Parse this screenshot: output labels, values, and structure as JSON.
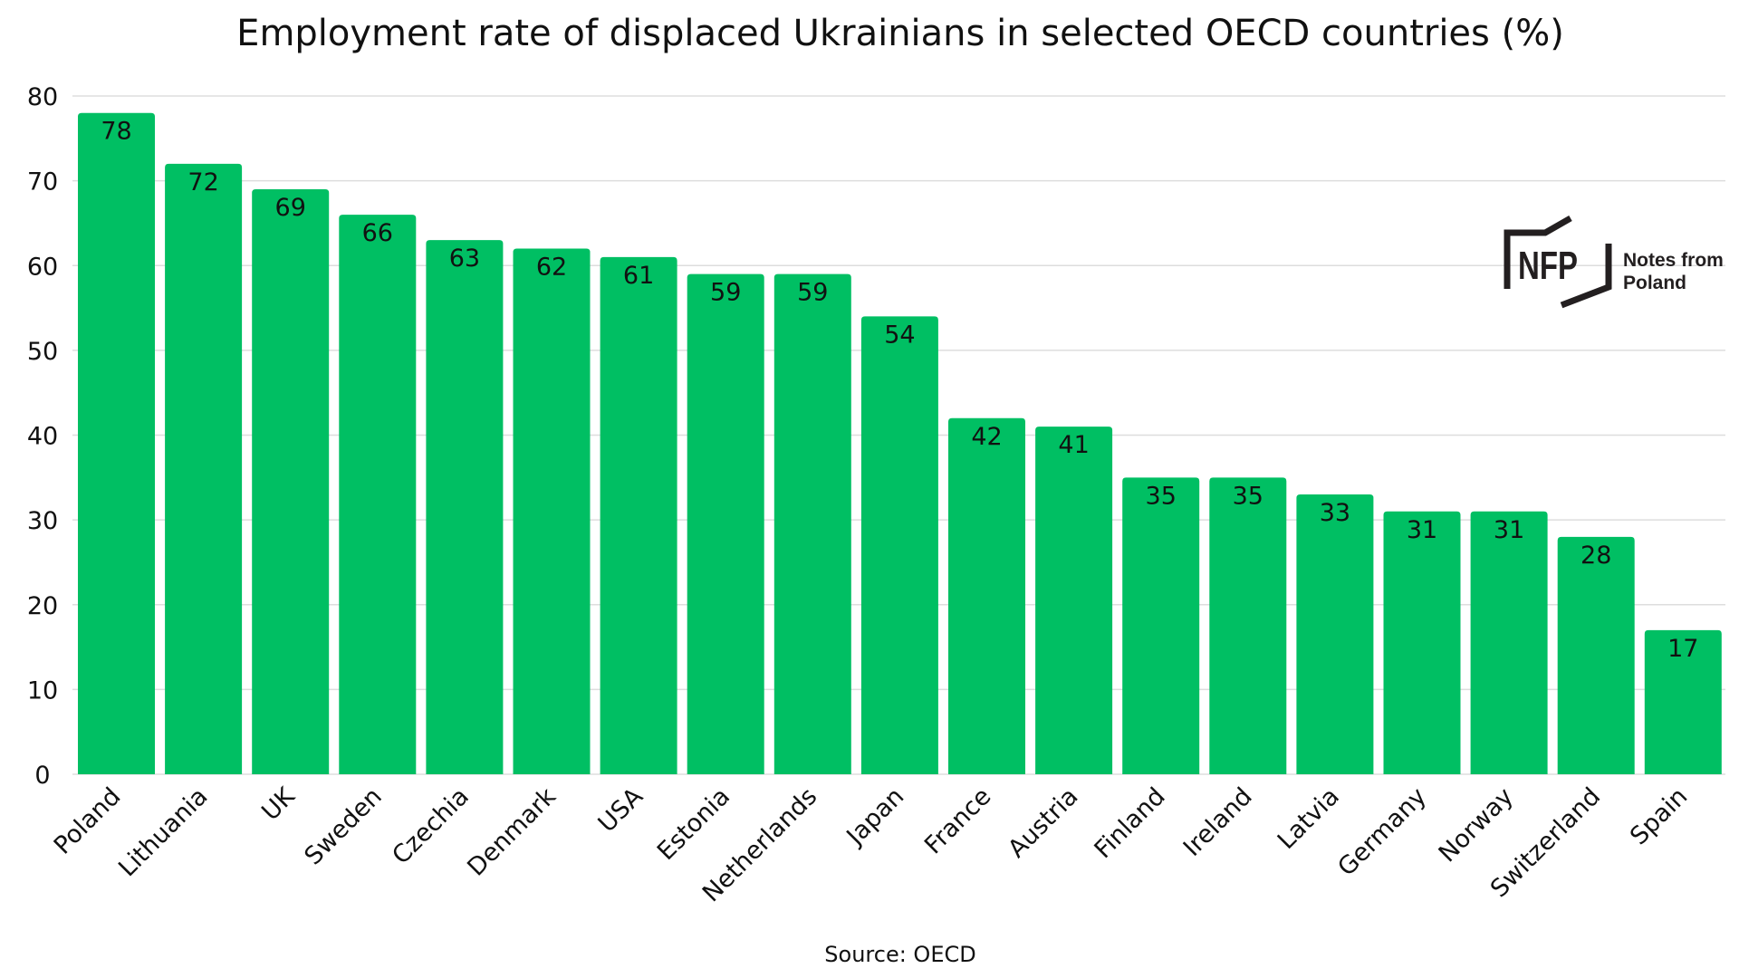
{
  "chart_data": {
    "type": "bar",
    "title": "Employment rate of displaced Ukrainians in selected OECD countries (%)",
    "categories": [
      "Poland",
      "Lithuania",
      "UK",
      "Sweden",
      "Czechia",
      "Denmark",
      "USA",
      "Estonia",
      "Netherlands",
      "Japan",
      "France",
      "Austria",
      "Finland",
      "Ireland",
      "Latvia",
      "Germany",
      "Norway",
      "Switzerland",
      "Spain"
    ],
    "values": [
      78,
      72,
      69,
      66,
      63,
      62,
      61,
      59,
      59,
      54,
      42,
      41,
      35,
      35,
      33,
      31,
      31,
      28,
      17
    ],
    "xlabel": "",
    "ylabel": "",
    "ylim": [
      0,
      80
    ],
    "yticks": [
      0,
      10,
      20,
      30,
      40,
      50,
      60,
      70,
      80
    ],
    "grid": true,
    "data_labels": true,
    "bar_color": "#00BF63",
    "grid_color": "#dddddd"
  },
  "source": "Source: OECD",
  "logo": {
    "mark": "NFP",
    "text_line1": "Notes from",
    "text_line2": "Poland",
    "color": "#231f20"
  }
}
